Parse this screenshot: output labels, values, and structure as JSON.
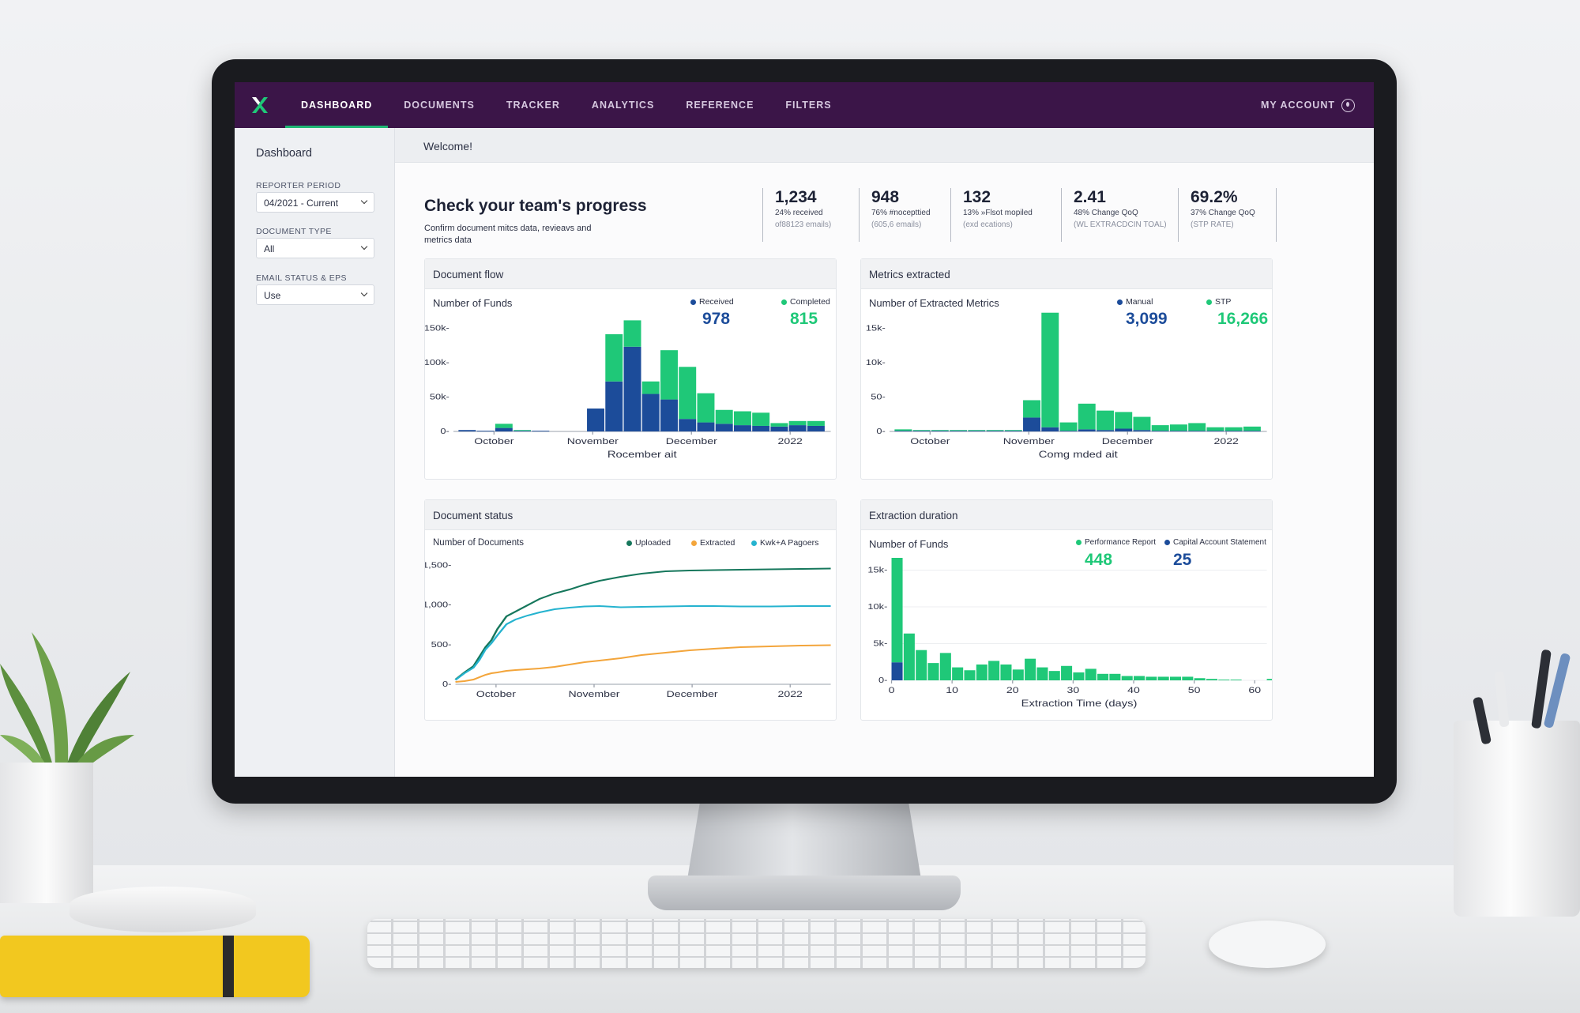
{
  "nav": {
    "items": [
      {
        "label": "DASHBOARD",
        "active": true
      },
      {
        "label": "DOCUMENTS",
        "active": false
      },
      {
        "label": "TRACKER",
        "active": false
      },
      {
        "label": "ANALYTICS",
        "active": false
      },
      {
        "label": "REFERENCE",
        "active": false
      },
      {
        "label": "FILTERS",
        "active": false
      }
    ],
    "account_label": "MY ACCOUNT"
  },
  "sidebar": {
    "title": "Dashboard",
    "filters": [
      {
        "label": "REPORTER PERIOD",
        "value": "04/2021 - Current"
      },
      {
        "label": "DOCUMENT TYPE",
        "value": "All"
      },
      {
        "label": "EMAIL STATUS & EPS",
        "value": "Use"
      }
    ]
  },
  "welcome": "Welcome!",
  "progress": {
    "title": "Check your team's progress",
    "subtitle": "Confirm document mitcs data, revieavs and metrics data"
  },
  "kpis": [
    {
      "value": "1,234",
      "sub": "24% received",
      "note": "of88123 emails)"
    },
    {
      "value": "948",
      "sub": "76% #nocepttied",
      "note": "(605,6 emails)"
    },
    {
      "value": "132",
      "sub": "13% »Flsot mopiled",
      "note": "(exd ecations)"
    },
    {
      "value": "2.41",
      "sub": "48% Change QoQ",
      "note": "(WL EXTRACDCIN TOAL)"
    },
    {
      "value": "69.2%",
      "sub": "37% Change QoQ",
      "note": "(STP RATE)"
    }
  ],
  "colors": {
    "green": "#1fc878",
    "blue": "#1c4c9a",
    "teal": "#16775c",
    "cyan": "#25b3cf",
    "orange": "#f3a53b",
    "nav": "#3b1548"
  },
  "cards": {
    "document_flow": {
      "title": "Document flow",
      "subtitle": "Number of Funds",
      "legend": [
        {
          "name": "Received",
          "total": "978",
          "color": "#1c4c9a"
        },
        {
          "name": "Completed",
          "total": "815",
          "color": "#1fc878"
        }
      ]
    },
    "metrics_extracted": {
      "title": "Metrics extracted",
      "subtitle": "Number of Extracted Metrics",
      "legend": [
        {
          "name": "Manual",
          "total": "3,099",
          "color": "#1c4c9a"
        },
        {
          "name": "STP",
          "total": "16,266",
          "color": "#1fc878"
        }
      ]
    },
    "document_status": {
      "title": "Document status",
      "subtitle": "Number of Documents",
      "legend": [
        {
          "name": "Uploaded",
          "color": "#16775c"
        },
        {
          "name": "Extracted",
          "color": "#f3a53b"
        },
        {
          "name": "Kwk+A Pagoers",
          "color": "#25b3cf"
        }
      ]
    },
    "extraction_duration": {
      "title": "Extraction duration",
      "subtitle": "Number of Funds",
      "legend": [
        {
          "name": "Performance Report",
          "total": "448",
          "color": "#1fc878"
        },
        {
          "name": "Capital Account Statement",
          "total": "25",
          "color": "#1c4c9a"
        }
      ]
    }
  },
  "chart_data": [
    {
      "name": "Document flow",
      "type": "bar",
      "stacked": true,
      "xlabel": "Rocember ait",
      "x_tick_labels": [
        "October",
        "November",
        "December",
        "2022"
      ],
      "y_tick_labels": [
        "0",
        "50k",
        "100k",
        "150k"
      ],
      "ylim": [
        0,
        165
      ],
      "series": [
        {
          "name": "Received",
          "values": [
            2,
            1,
            5,
            1,
            1,
            0,
            0,
            33,
            72,
            122,
            54,
            46,
            18,
            13,
            11,
            9,
            8,
            7,
            9,
            8
          ]
        },
        {
          "name": "Completed",
          "values": [
            0,
            0,
            6,
            1,
            0,
            0,
            0,
            0,
            68,
            38,
            18,
            71,
            75,
            42,
            20,
            20,
            19,
            5,
            6,
            7
          ]
        }
      ]
    },
    {
      "name": "Metrics extracted",
      "type": "bar",
      "stacked": true,
      "xlabel": "Comg mded ait",
      "x_tick_labels": [
        "October",
        "November",
        "December",
        "2022"
      ],
      "y_tick_labels": [
        "0",
        "50",
        "10k",
        "15k"
      ],
      "ylim": [
        0,
        16.5
      ],
      "series": [
        {
          "name": "Manual",
          "values": [
            0.1,
            0.1,
            0.1,
            0.1,
            0.1,
            0.1,
            0.1,
            2.0,
            0.6,
            0.1,
            0.3,
            0.2,
            0.4,
            0.2,
            0.1,
            0.1,
            0.1,
            0.1,
            0.1,
            0.1
          ]
        },
        {
          "name": "STP",
          "values": [
            0.2,
            0.1,
            0.1,
            0.1,
            0.1,
            0.1,
            0.1,
            2.5,
            16.5,
            1.2,
            3.7,
            2.8,
            2.4,
            1.9,
            0.8,
            0.9,
            1.1,
            0.5,
            0.5,
            0.6
          ]
        }
      ]
    },
    {
      "name": "Document status",
      "type": "line",
      "x_tick_labels": [
        "October",
        "November",
        "December",
        "2022"
      ],
      "y_tick_labels": [
        "0",
        "500",
        "1,000",
        "1,500"
      ],
      "ylim": [
        0,
        1600
      ],
      "x": [
        0,
        3,
        6,
        8,
        10,
        12,
        14,
        17,
        20,
        24,
        28,
        33,
        38,
        43,
        48,
        55,
        62,
        70,
        78,
        86,
        95,
        105,
        115,
        125
      ],
      "series": [
        {
          "name": "Uploaded",
          "values": [
            60,
            150,
            230,
            350,
            470,
            560,
            700,
            860,
            920,
            1000,
            1080,
            1150,
            1200,
            1260,
            1310,
            1360,
            1400,
            1430,
            1440,
            1445,
            1450,
            1455,
            1460,
            1465
          ]
        },
        {
          "name": "Kwk+A Pagoers",
          "values": [
            55,
            140,
            210,
            310,
            440,
            520,
            620,
            760,
            820,
            870,
            910,
            950,
            970,
            985,
            990,
            975,
            980,
            985,
            990,
            990,
            985,
            985,
            990,
            990
          ]
        },
        {
          "name": "Extracted",
          "values": [
            30,
            40,
            60,
            90,
            120,
            140,
            150,
            170,
            180,
            190,
            200,
            220,
            250,
            280,
            300,
            330,
            370,
            400,
            430,
            450,
            470,
            480,
            490,
            495
          ]
        }
      ]
    },
    {
      "name": "Extraction duration",
      "type": "bar",
      "stacked": true,
      "xlabel": "Extraction Time (days)",
      "x_tick_labels": [
        "0",
        "10",
        "20",
        "30",
        "40",
        "50",
        "60"
      ],
      "y_tick_labels": [
        "0",
        "5k",
        "10k",
        "15k"
      ],
      "xlim": [
        0,
        62
      ],
      "ylim": [
        0,
        17
      ],
      "series": [
        {
          "name": "Capital Account Statement",
          "values": [
            2.5,
            0,
            0,
            0,
            0,
            0,
            0,
            0,
            0,
            0,
            0,
            0,
            0,
            0,
            0,
            0,
            0,
            0,
            0,
            0,
            0,
            0,
            0,
            0,
            0,
            0,
            0,
            0,
            0,
            0,
            0,
            0
          ]
        },
        {
          "name": "Performance Report",
          "values": [
            14.5,
            6.5,
            4.2,
            2.4,
            3.8,
            1.8,
            1.4,
            2.2,
            2.7,
            2.2,
            1.5,
            3.0,
            1.8,
            1.3,
            2.0,
            1.1,
            1.6,
            0.9,
            0.9,
            0.6,
            0.6,
            0.5,
            0.5,
            0.5,
            0.5,
            0.3,
            0.2,
            0.1,
            0.1,
            0,
            0,
            0.2
          ]
        }
      ]
    }
  ]
}
